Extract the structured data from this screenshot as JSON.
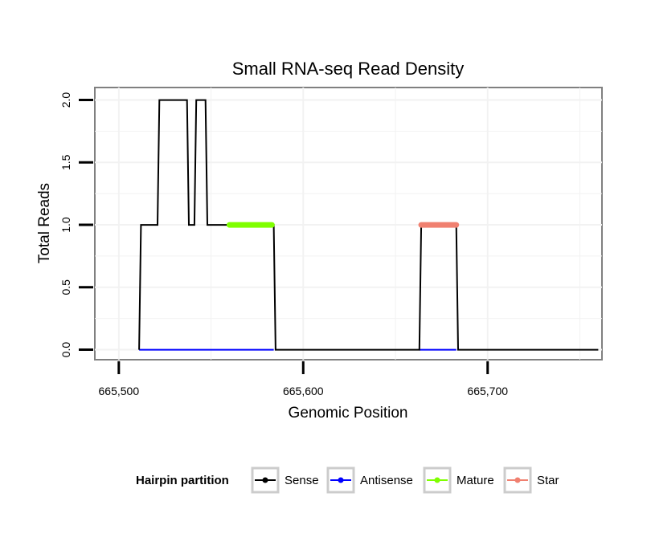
{
  "chart_data": {
    "type": "line",
    "title": "Small RNA-seq Read Density",
    "xlabel": "Genomic Position",
    "ylabel": "Total Reads",
    "xlim": [
      665487,
      665762
    ],
    "ylim": [
      -0.08,
      2.1
    ],
    "x_ticks": [
      665500,
      665600,
      665700
    ],
    "x_tick_labels": [
      "665,500",
      "665,600",
      "665,700"
    ],
    "y_ticks": [
      0,
      0.5,
      1,
      1.5,
      2
    ],
    "y_tick_labels": [
      "0.0",
      "0.5",
      "1.0",
      "1.5",
      "2.0"
    ],
    "grid": true,
    "legend": {
      "title": "Hairpin partition",
      "placement": "bottom",
      "entries": [
        {
          "label": "Sense",
          "color": "#000000"
        },
        {
          "label": "Antisense",
          "color": "#0000ff"
        },
        {
          "label": "Mature",
          "color": "#7fff00"
        },
        {
          "label": "Star",
          "color": "#f08070"
        }
      ]
    },
    "series": [
      {
        "name": "Sense",
        "color": "#000000",
        "x": [
          665511,
          665512,
          665521,
          665522,
          665537,
          665538,
          665541,
          665542,
          665547,
          665548,
          665584,
          665585,
          665663,
          665664,
          665683,
          665684,
          665760
        ],
        "y": [
          0,
          1,
          1,
          2,
          2,
          1,
          1,
          2,
          2,
          1,
          1,
          0,
          0,
          1,
          1,
          0,
          0
        ]
      },
      {
        "name": "Antisense",
        "color": "#0000ff",
        "x": [
          665511,
          665584
        ],
        "y": [
          0,
          0
        ]
      },
      {
        "name": "Antisense",
        "color": "#0000ff",
        "x": [
          665663,
          665683
        ],
        "y": [
          0,
          0
        ]
      },
      {
        "name": "Mature",
        "color": "#7fff00",
        "x": [
          665560,
          665583
        ],
        "y": [
          1,
          1
        ]
      },
      {
        "name": "Star",
        "color": "#f08070",
        "x": [
          665664,
          665683
        ],
        "y": [
          1,
          1
        ]
      }
    ]
  }
}
